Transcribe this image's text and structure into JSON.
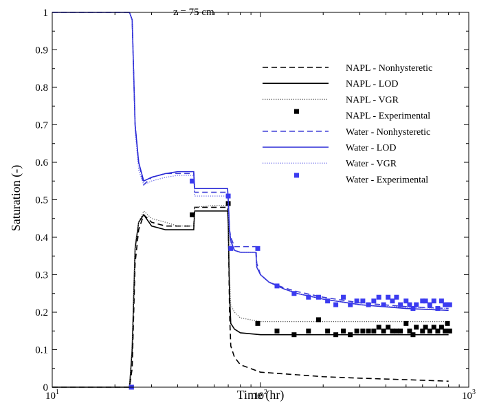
{
  "chart_data": {
    "type": "line",
    "xlabel": "Time (hr)",
    "ylabel": "Saturation (-)",
    "annotation": "z = 75 cm",
    "x_scale": "log",
    "xlim": [
      10,
      1000
    ],
    "ylim": [
      0,
      1
    ],
    "x_ticks": [
      {
        "value": 10,
        "base": "10",
        "exp": "1"
      },
      {
        "value": 100,
        "base": "10",
        "exp": "2"
      },
      {
        "value": 1000,
        "base": "10",
        "exp": "3"
      }
    ],
    "y_ticks": [
      "0",
      "0.1",
      "0.2",
      "0.3",
      "0.4",
      "0.5",
      "0.6",
      "0.7",
      "0.8",
      "0.9",
      "1"
    ],
    "grid": false,
    "legend_position": "top-right",
    "series": [
      {
        "name": "NAPL - Nonhysteretic",
        "color": "#000000",
        "style": "dashed",
        "marker": "line",
        "points": [
          [
            10,
            0
          ],
          [
            23.5,
            0
          ],
          [
            24.2,
            0.05
          ],
          [
            25,
            0.33
          ],
          [
            26,
            0.42
          ],
          [
            27.5,
            0.46
          ],
          [
            30,
            0.44
          ],
          [
            35,
            0.43
          ],
          [
            40,
            0.43
          ],
          [
            47,
            0.43
          ],
          [
            47.8,
            0.43
          ],
          [
            48.3,
            0.48
          ],
          [
            60,
            0.48
          ],
          [
            69.5,
            0.48
          ],
          [
            70,
            0.45
          ],
          [
            71,
            0.2
          ],
          [
            72,
            0.11
          ],
          [
            75,
            0.08
          ],
          [
            80,
            0.06
          ],
          [
            100,
            0.04
          ],
          [
            150,
            0.033
          ],
          [
            200,
            0.028
          ],
          [
            300,
            0.024
          ],
          [
            500,
            0.02
          ],
          [
            800,
            0.016
          ]
        ]
      },
      {
        "name": "NAPL - LOD",
        "color": "#000000",
        "style": "solid",
        "marker": "line",
        "points": [
          [
            10,
            0
          ],
          [
            23.5,
            0
          ],
          [
            24.2,
            0.1
          ],
          [
            25,
            0.37
          ],
          [
            26,
            0.44
          ],
          [
            27.5,
            0.46
          ],
          [
            30,
            0.43
          ],
          [
            35,
            0.42
          ],
          [
            40,
            0.42
          ],
          [
            47,
            0.42
          ],
          [
            47.8,
            0.42
          ],
          [
            48.3,
            0.47
          ],
          [
            60,
            0.47
          ],
          [
            69.5,
            0.47
          ],
          [
            70,
            0.44
          ],
          [
            71,
            0.25
          ],
          [
            72,
            0.17
          ],
          [
            75,
            0.155
          ],
          [
            80,
            0.145
          ],
          [
            100,
            0.14
          ],
          [
            200,
            0.14
          ],
          [
            500,
            0.14
          ],
          [
            800,
            0.14
          ]
        ]
      },
      {
        "name": "NAPL - VGR",
        "color": "#555555",
        "style": "dotted",
        "marker": "line",
        "points": [
          [
            10,
            0
          ],
          [
            23.5,
            0
          ],
          [
            24.2,
            0.12
          ],
          [
            25,
            0.38
          ],
          [
            26,
            0.44
          ],
          [
            27.5,
            0.47
          ],
          [
            30,
            0.45
          ],
          [
            35,
            0.44
          ],
          [
            40,
            0.43
          ],
          [
            47,
            0.43
          ],
          [
            47.8,
            0.43
          ],
          [
            48.3,
            0.48
          ],
          [
            60,
            0.485
          ],
          [
            69.5,
            0.485
          ],
          [
            70,
            0.46
          ],
          [
            71,
            0.3
          ],
          [
            72,
            0.22
          ],
          [
            75,
            0.2
          ],
          [
            80,
            0.185
          ],
          [
            100,
            0.175
          ],
          [
            200,
            0.175
          ],
          [
            500,
            0.175
          ],
          [
            800,
            0.175
          ]
        ]
      },
      {
        "name": "NAPL - Experimental",
        "color": "#000000",
        "style": "none",
        "marker": "square",
        "points": [
          [
            24,
            0
          ],
          [
            47,
            0.46
          ],
          [
            70,
            0.49
          ],
          [
            97,
            0.17
          ],
          [
            120,
            0.15
          ],
          [
            145,
            0.14
          ],
          [
            170,
            0.15
          ],
          [
            190,
            0.18
          ],
          [
            210,
            0.15
          ],
          [
            230,
            0.14
          ],
          [
            250,
            0.15
          ],
          [
            270,
            0.14
          ],
          [
            290,
            0.15
          ],
          [
            310,
            0.15
          ],
          [
            330,
            0.15
          ],
          [
            350,
            0.15
          ],
          [
            370,
            0.16
          ],
          [
            390,
            0.15
          ],
          [
            410,
            0.16
          ],
          [
            430,
            0.15
          ],
          [
            450,
            0.15
          ],
          [
            470,
            0.15
          ],
          [
            500,
            0.17
          ],
          [
            520,
            0.15
          ],
          [
            540,
            0.14
          ],
          [
            560,
            0.16
          ],
          [
            600,
            0.15
          ],
          [
            620,
            0.16
          ],
          [
            650,
            0.15
          ],
          [
            680,
            0.16
          ],
          [
            710,
            0.15
          ],
          [
            740,
            0.16
          ],
          [
            770,
            0.15
          ],
          [
            790,
            0.17
          ],
          [
            810,
            0.15
          ]
        ]
      },
      {
        "name": "Water - Nonhysteretic",
        "color": "#3b3bd6",
        "style": "dashed",
        "marker": "line",
        "points": [
          [
            10,
            1
          ],
          [
            23.5,
            1
          ],
          [
            24.2,
            0.98
          ],
          [
            25,
            0.7
          ],
          [
            26,
            0.6
          ],
          [
            27.5,
            0.54
          ],
          [
            30,
            0.56
          ],
          [
            35,
            0.57
          ],
          [
            40,
            0.57
          ],
          [
            47,
            0.57
          ],
          [
            47.8,
            0.57
          ],
          [
            48.3,
            0.52
          ],
          [
            60,
            0.52
          ],
          [
            69.5,
            0.52
          ],
          [
            70,
            0.5
          ],
          [
            71,
            0.42
          ],
          [
            72,
            0.4
          ],
          [
            75,
            0.375
          ],
          [
            80,
            0.375
          ],
          [
            95,
            0.375
          ],
          [
            96,
            0.33
          ],
          [
            100,
            0.3
          ],
          [
            110,
            0.28
          ],
          [
            130,
            0.265
          ],
          [
            150,
            0.255
          ],
          [
            200,
            0.24
          ],
          [
            300,
            0.225
          ],
          [
            500,
            0.215
          ],
          [
            800,
            0.21
          ]
        ]
      },
      {
        "name": "Water - LOD",
        "color": "#2a2ad6",
        "style": "solid",
        "marker": "line",
        "points": [
          [
            10,
            1
          ],
          [
            23.5,
            1
          ],
          [
            24.2,
            0.98
          ],
          [
            25,
            0.7
          ],
          [
            26,
            0.6
          ],
          [
            27.5,
            0.55
          ],
          [
            30,
            0.56
          ],
          [
            35,
            0.57
          ],
          [
            40,
            0.575
          ],
          [
            47,
            0.575
          ],
          [
            47.8,
            0.575
          ],
          [
            48.3,
            0.53
          ],
          [
            60,
            0.53
          ],
          [
            69.5,
            0.53
          ],
          [
            70,
            0.5
          ],
          [
            71,
            0.42
          ],
          [
            72,
            0.39
          ],
          [
            75,
            0.365
          ],
          [
            80,
            0.36
          ],
          [
            95,
            0.36
          ],
          [
            96,
            0.32
          ],
          [
            100,
            0.3
          ],
          [
            110,
            0.28
          ],
          [
            130,
            0.262
          ],
          [
            150,
            0.25
          ],
          [
            200,
            0.235
          ],
          [
            300,
            0.22
          ],
          [
            500,
            0.21
          ],
          [
            800,
            0.205
          ]
        ]
      },
      {
        "name": "Water - VGR",
        "color": "#5a5ae6",
        "style": "dotted",
        "marker": "line",
        "points": [
          [
            10,
            1
          ],
          [
            23.5,
            1
          ],
          [
            24.2,
            0.98
          ],
          [
            25,
            0.68
          ],
          [
            26,
            0.58
          ],
          [
            27.5,
            0.54
          ],
          [
            30,
            0.55
          ],
          [
            35,
            0.56
          ],
          [
            40,
            0.565
          ],
          [
            47,
            0.565
          ],
          [
            47.8,
            0.565
          ],
          [
            48.3,
            0.51
          ],
          [
            60,
            0.51
          ],
          [
            69.5,
            0.51
          ],
          [
            70,
            0.48
          ],
          [
            71,
            0.41
          ],
          [
            72,
            0.38
          ],
          [
            75,
            0.365
          ],
          [
            80,
            0.36
          ],
          [
            95,
            0.36
          ],
          [
            96,
            0.32
          ],
          [
            100,
            0.3
          ],
          [
            110,
            0.28
          ],
          [
            130,
            0.262
          ],
          [
            150,
            0.25
          ],
          [
            200,
            0.235
          ],
          [
            300,
            0.22
          ],
          [
            500,
            0.213
          ],
          [
            800,
            0.21
          ]
        ]
      },
      {
        "name": "Water - Experimental",
        "color": "#3b3bf0",
        "style": "none",
        "marker": "square",
        "points": [
          [
            24,
            0
          ],
          [
            47,
            0.55
          ],
          [
            70,
            0.51
          ],
          [
            72,
            0.37
          ],
          [
            97,
            0.37
          ],
          [
            120,
            0.27
          ],
          [
            145,
            0.25
          ],
          [
            170,
            0.24
          ],
          [
            190,
            0.24
          ],
          [
            210,
            0.23
          ],
          [
            230,
            0.22
          ],
          [
            250,
            0.24
          ],
          [
            270,
            0.22
          ],
          [
            290,
            0.23
          ],
          [
            310,
            0.23
          ],
          [
            330,
            0.22
          ],
          [
            350,
            0.23
          ],
          [
            370,
            0.24
          ],
          [
            390,
            0.22
          ],
          [
            410,
            0.24
          ],
          [
            430,
            0.23
          ],
          [
            450,
            0.24
          ],
          [
            470,
            0.22
          ],
          [
            500,
            0.23
          ],
          [
            520,
            0.22
          ],
          [
            540,
            0.21
          ],
          [
            560,
            0.22
          ],
          [
            600,
            0.23
          ],
          [
            620,
            0.23
          ],
          [
            650,
            0.22
          ],
          [
            680,
            0.23
          ],
          [
            710,
            0.21
          ],
          [
            740,
            0.23
          ],
          [
            770,
            0.22
          ],
          [
            790,
            0.22
          ],
          [
            810,
            0.22
          ]
        ]
      }
    ]
  }
}
